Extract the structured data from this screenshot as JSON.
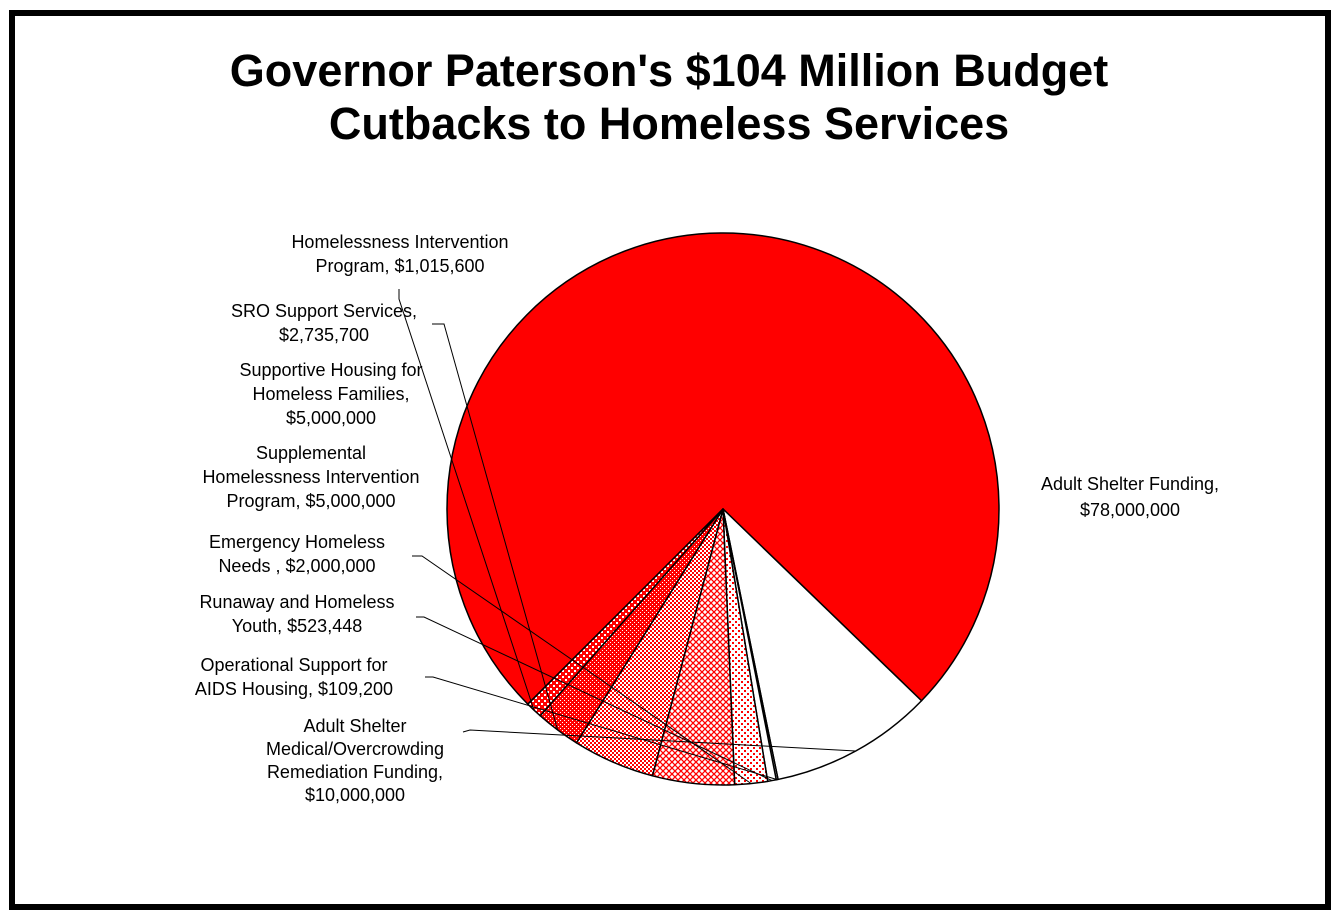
{
  "chart_data": {
    "type": "pie",
    "title_lines": [
      "Governor Paterson's $104 Million Budget",
      "Cutbacks to Homeless Services"
    ],
    "slices": [
      {
        "name": "Adult Shelter Funding",
        "value": 78000000,
        "label_lines": [
          "Adult Shelter Funding,",
          "$78,000,000"
        ],
        "fill": "solid",
        "color": "#ff0000"
      },
      {
        "name": "Adult Shelter Medical/Overcrowding Remediation Funding",
        "value": 10000000,
        "label_lines": [
          "Adult Shelter",
          "Medical/Overcrowding",
          "Remediation Funding,",
          "$10,000,000"
        ],
        "fill": "solid",
        "color": "#ffffff"
      },
      {
        "name": "Operational Support for AIDS Housing",
        "value": 109200,
        "label_lines": [
          "Operational Support for",
          "AIDS Housing,  $109,200"
        ],
        "fill": "solid",
        "color": "#ffffff"
      },
      {
        "name": "Runaway and Homeless Youth",
        "value": 523448,
        "label_lines": [
          "Runaway and Homeless",
          "Youth,  $523,448"
        ],
        "fill": "solid",
        "color": "#ffffff"
      },
      {
        "name": "Emergency Homeless Needs",
        "value": 2000000,
        "label_lines": [
          "Emergency Homeless",
          "Needs ,  $2,000,000"
        ],
        "fill": "dots-sparse",
        "color": "#ff0000"
      },
      {
        "name": "Supplemental Homelessness Intervention Program",
        "value": 5000000,
        "label_lines": [
          "Supplemental",
          "Homelessness Intervention",
          "Program,  $5,000,000"
        ],
        "fill": "crosshatch",
        "color": "#ff0000"
      },
      {
        "name": "Supportive Housing for Homeless Families",
        "value": 5000000,
        "label_lines": [
          "Supportive Housing for",
          "Homeless Families,",
          "$5,000,000"
        ],
        "fill": "dots-medium",
        "color": "#ff0000"
      },
      {
        "name": "SRO Support Services",
        "value": 2735700,
        "label_lines": [
          "SRO Support Services,",
          "$2,735,700"
        ],
        "fill": "dots-dense",
        "color": "#ff0000"
      },
      {
        "name": "Homelessness Intervention Program",
        "value": 1015600,
        "label_lines": [
          "Homelessness Intervention",
          "Program,  $1,015,600"
        ],
        "fill": "dots-inverse",
        "color": "#ff0000"
      }
    ]
  }
}
